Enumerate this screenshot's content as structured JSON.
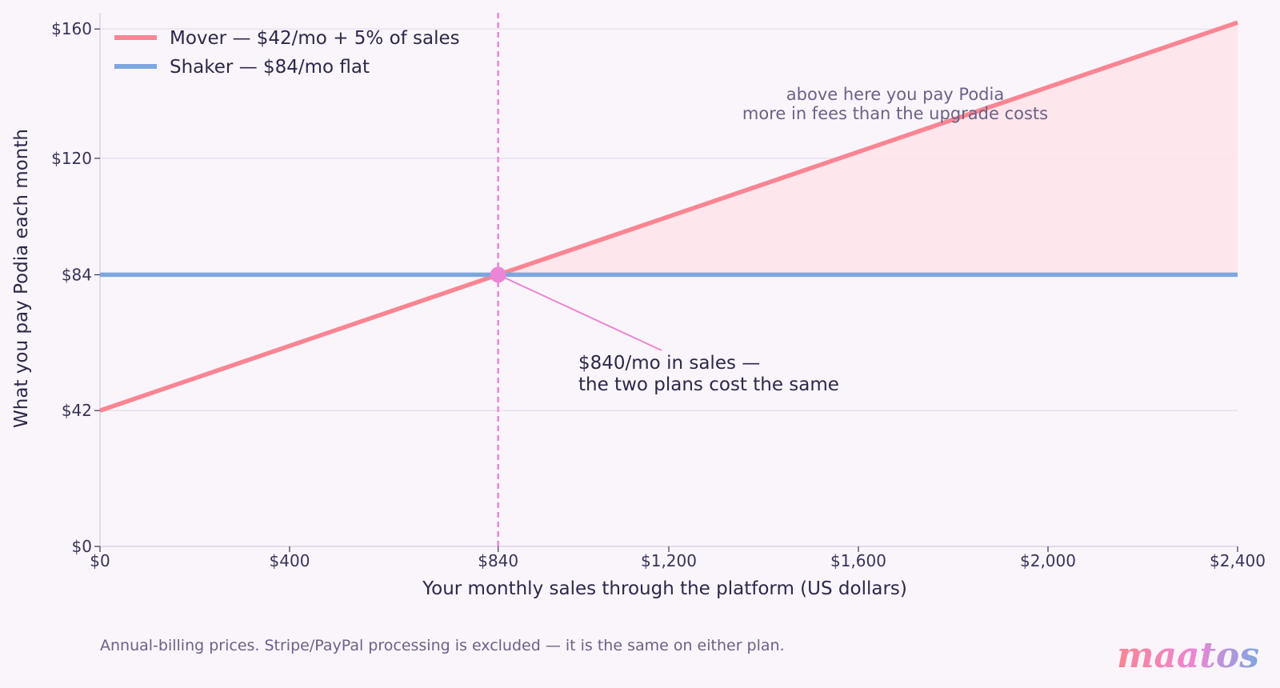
{
  "chart_data": {
    "type": "line",
    "xlabel": "Your monthly sales through the platform (US dollars)",
    "ylabel": "What you pay Podia each month",
    "xlim": [
      0,
      2400
    ],
    "ylim": [
      0,
      165
    ],
    "x_ticks": [
      0,
      400,
      840,
      1200,
      1600,
      2000,
      2400
    ],
    "x_tick_labels": [
      "$0",
      "$400",
      "$840",
      "$1,200",
      "$1,600",
      "$2,000",
      "$2,400"
    ],
    "y_ticks": [
      0,
      42,
      84,
      120,
      160
    ],
    "y_tick_labels": [
      "$0",
      "$42",
      "$84",
      "$120",
      "$160"
    ],
    "grid": "horizontal",
    "legend_position": "top-left",
    "series": [
      {
        "name": "Mover — $42/mo + 5% of sales",
        "color": "#fb8592",
        "x": [
          0,
          2400
        ],
        "y": [
          42,
          162
        ]
      },
      {
        "name": "Shaker — $84/mo flat",
        "color": "#7ea7df",
        "x": [
          0,
          2400
        ],
        "y": [
          84,
          84
        ]
      }
    ],
    "shaded_region": {
      "x_from": 840,
      "x_to": 2400,
      "between": [
        "Mover — $42/mo + 5% of sales",
        "Shaker — $84/mo flat"
      ],
      "color": "#fde4ea"
    },
    "breakeven": {
      "x": 840,
      "y": 84,
      "color": "#ec86d4"
    },
    "annotations": [
      {
        "id": "breakeven",
        "lines": [
          "$840/mo in sales —",
          "the two plans cost the same"
        ],
        "anchor_x": 840,
        "anchor_y": 84
      },
      {
        "id": "region",
        "lines": [
          "above here you pay Podia",
          "more in fees than the upgrade costs"
        ]
      }
    ]
  },
  "footnote": "Annual-billing prices. Stripe/PayPal processing is excluded — it is the same on either plan.",
  "logo": {
    "text": "maatos",
    "colors": [
      "#fb8592",
      "#ec86d4",
      "#7ea7df"
    ]
  }
}
